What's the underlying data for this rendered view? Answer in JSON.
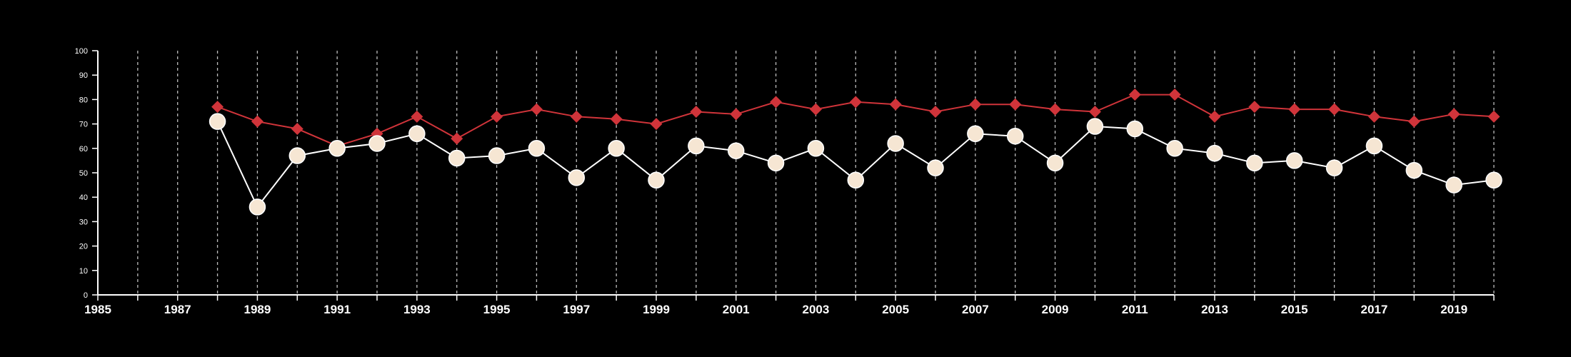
{
  "chart_data": {
    "type": "line",
    "title": "",
    "xlabel": "",
    "ylabel": "",
    "xlim": [
      1985,
      2020
    ],
    "ylim": [
      0,
      100
    ],
    "x_ticks": [
      1985,
      1987,
      1989,
      1991,
      1993,
      1995,
      1997,
      1999,
      2001,
      2003,
      2005,
      2007,
      2009,
      2011,
      2013,
      2015,
      2017,
      2019
    ],
    "y_ticks": [
      0,
      10,
      20,
      30,
      40,
      50,
      60,
      70,
      80,
      90,
      100
    ],
    "grid": "vertical dashed lines at every year",
    "legend": "none",
    "x": [
      1988,
      1989,
      1990,
      1991,
      1992,
      1993,
      1994,
      1995,
      1996,
      1997,
      1998,
      1999,
      2000,
      2001,
      2002,
      2003,
      2004,
      2005,
      2006,
      2007,
      2008,
      2009,
      2010,
      2011,
      2012,
      2013,
      2014,
      2015,
      2016,
      2017,
      2018,
      2019,
      2020
    ],
    "series": [
      {
        "marker": "diamond",
        "color": "#d0343a",
        "values": [
          77,
          71,
          68,
          61,
          66,
          73,
          64,
          73,
          76,
          73,
          72,
          70,
          75,
          74,
          79,
          76,
          79,
          78,
          75,
          78,
          78,
          76,
          75,
          82,
          82,
          73,
          77,
          76,
          76,
          73,
          71,
          74,
          73
        ]
      },
      {
        "marker": "circle",
        "color": "#f6e6d3",
        "line_color": "#ffffff",
        "values": [
          71,
          36,
          57,
          60,
          62,
          66,
          56,
          57,
          60,
          48,
          60,
          47,
          61,
          59,
          54,
          60,
          47,
          62,
          52,
          66,
          65,
          54,
          69,
          68,
          60,
          58,
          54,
          55,
          52,
          61,
          51,
          45,
          47
        ]
      }
    ]
  }
}
